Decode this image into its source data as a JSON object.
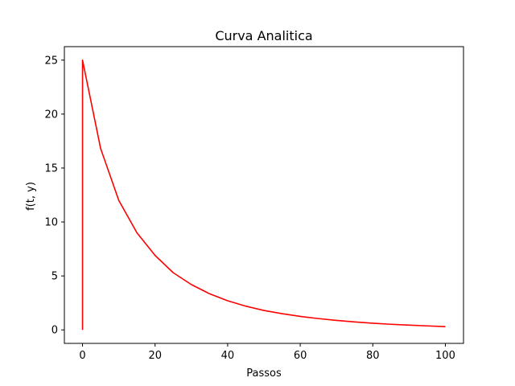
{
  "chart_data": {
    "type": "line",
    "title": "Curva Analitica",
    "xlabel": "Passos",
    "ylabel": "f(t, y)",
    "xlim": [
      -5,
      105
    ],
    "ylim": [
      -1.25,
      26.25
    ],
    "xticks": [
      0,
      20,
      40,
      60,
      80,
      100
    ],
    "yticks": [
      0,
      5,
      10,
      15,
      20,
      25
    ],
    "grid": false,
    "series": [
      {
        "color": "#ff0000",
        "x": [
          0,
          0,
          5,
          10,
          15,
          20,
          25,
          30,
          35,
          40,
          45,
          50,
          55,
          60,
          65,
          70,
          75,
          80,
          85,
          90,
          95,
          100
        ],
        "y": [
          0,
          25,
          16.8,
          12.0,
          9.0,
          6.9,
          5.3,
          4.2,
          3.35,
          2.7,
          2.2,
          1.8,
          1.5,
          1.25,
          1.05,
          0.88,
          0.74,
          0.62,
          0.52,
          0.44,
          0.37,
          0.3
        ]
      }
    ]
  }
}
